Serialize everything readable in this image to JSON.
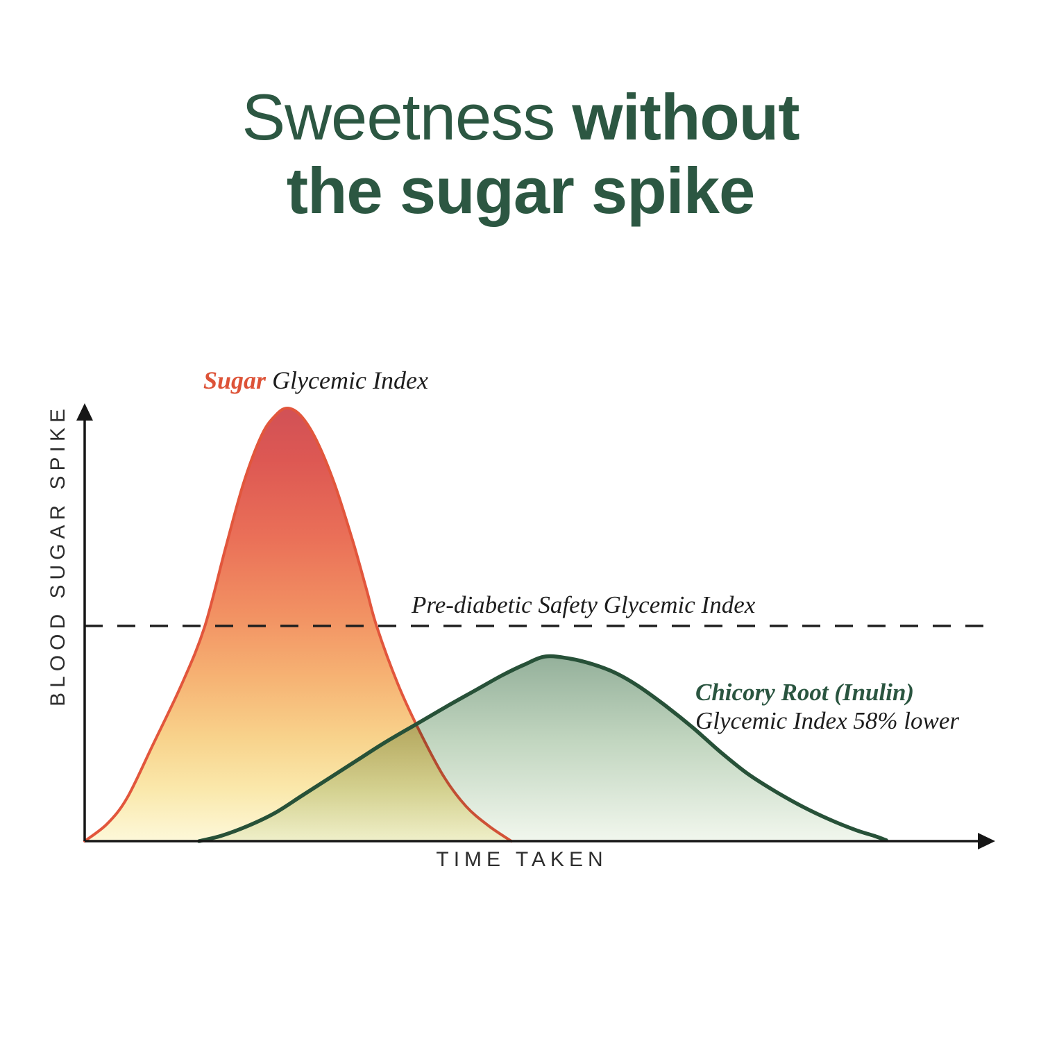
{
  "title": {
    "line1_regular": "Sweetness ",
    "line1_bold": "without",
    "line2_bold": "the sugar spike"
  },
  "labels": {
    "sugar_emph": "Sugar",
    "sugar_rest": " Glycemic Index",
    "threshold": "Pre-diabetic Safety Glycemic Index",
    "chicory_line1": "Chicory Root (Inulin)",
    "chicory_line2": "Glycemic Index 58% lower"
  },
  "axes": {
    "x": "TIME TAKEN",
    "y": "BLOOD SUGAR SPIKE"
  },
  "colors": {
    "title_green": "#2c5742",
    "sugar_accent": "#dd5338",
    "chicory_accent": "#2a5540",
    "text_dark": "#1d1d1d",
    "axis": "#161616",
    "threshold_line": "#1f1f1f",
    "sugar_stroke": "#e2563c",
    "chicory_stroke": "#275138",
    "sugar_fill_stops": [
      "#d15156",
      "#dd5853",
      "#ea7058",
      "#f29263",
      "#f6b273",
      "#f8d28b",
      "#fae8ab",
      "#fdf8d9"
    ],
    "chicory_fill_stops": [
      "#8caa93",
      "#bcd2ba",
      "#f0f6ec"
    ]
  },
  "chart_data": {
    "type": "area",
    "title": "Sweetness without the sugar spike",
    "xlabel": "TIME TAKEN",
    "ylabel": "BLOOD SUGAR SPIKE",
    "grid": false,
    "axis_ticks": "none",
    "x_range_percent": [
      0,
      100
    ],
    "y_range_percent": [
      0,
      100
    ],
    "threshold": {
      "label": "Pre-diabetic Safety Glycemic Index",
      "y_percent": 49.3,
      "style": "dashed"
    },
    "series": [
      {
        "name": "Sugar Glycemic Index",
        "peak_x_percent": 22.3,
        "peak_y_percent": 99.2,
        "points": [
          [
            0,
            0
          ],
          [
            2.5,
            4
          ],
          [
            4.7,
            10
          ],
          [
            7.5,
            22
          ],
          [
            10.7,
            36
          ],
          [
            13.2,
            49
          ],
          [
            15.5,
            67
          ],
          [
            17.5,
            82
          ],
          [
            19.5,
            93
          ],
          [
            21,
            97.5
          ],
          [
            22.3,
            99.2
          ],
          [
            23.8,
            97.5
          ],
          [
            25.5,
            92
          ],
          [
            27.5,
            82
          ],
          [
            29.5,
            69
          ],
          [
            31,
            58
          ],
          [
            32.2,
            49
          ],
          [
            34.5,
            36
          ],
          [
            36.7,
            26
          ],
          [
            39.5,
            15
          ],
          [
            42,
            8
          ],
          [
            44.5,
            3.5
          ],
          [
            47,
            0
          ]
        ]
      },
      {
        "name": "Chicory Root (Inulin) Glycemic Index 58% lower",
        "note": "Glycemic Index 58% lower than sugar",
        "peak_x_percent": 50.8,
        "peak_y_percent": 42.3,
        "points": [
          [
            12.6,
            0
          ],
          [
            15,
            1.2
          ],
          [
            18,
            3.5
          ],
          [
            21,
            6.5
          ],
          [
            24,
            10.5
          ],
          [
            27,
            14.5
          ],
          [
            30,
            18.5
          ],
          [
            33,
            22.5
          ],
          [
            36.7,
            27
          ],
          [
            40,
            31
          ],
          [
            43,
            34.5
          ],
          [
            46,
            38
          ],
          [
            48.5,
            40.5
          ],
          [
            50.8,
            42.3
          ],
          [
            53.5,
            41.8
          ],
          [
            56,
            40.5
          ],
          [
            58.5,
            38.5
          ],
          [
            61,
            35.5
          ],
          [
            64,
            31
          ],
          [
            67,
            26
          ],
          [
            70,
            20.5
          ],
          [
            73,
            15.5
          ],
          [
            76,
            11.5
          ],
          [
            79,
            8
          ],
          [
            82,
            5
          ],
          [
            85,
            2.5
          ],
          [
            87,
            1.2
          ],
          [
            88.3,
            0.2
          ]
        ]
      }
    ]
  }
}
